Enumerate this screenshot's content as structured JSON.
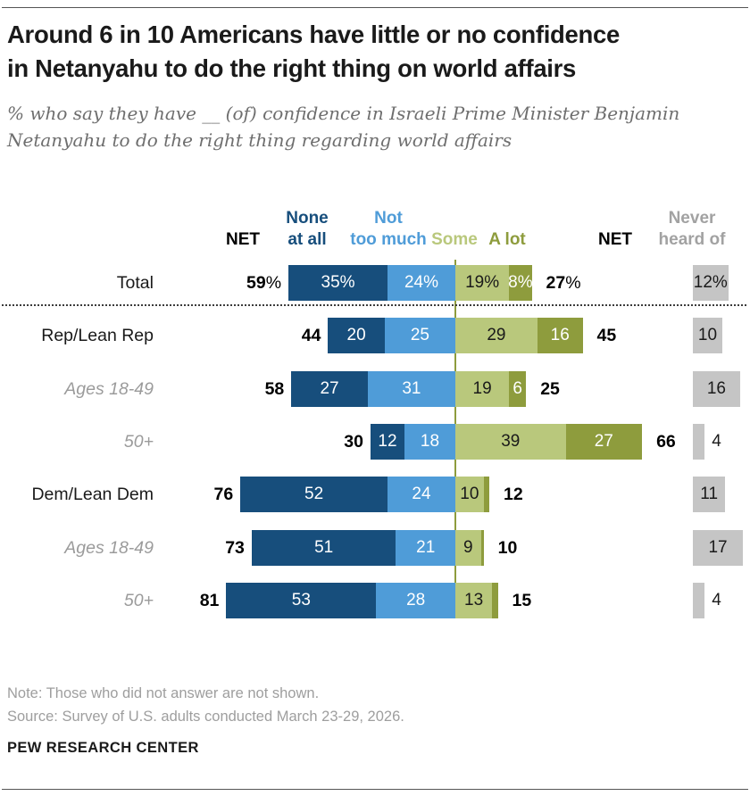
{
  "page": {
    "title": [
      "Around 6 in 10 Americans have little or no confidence",
      "in Netanyahu to do the right thing on world affairs"
    ],
    "subtitle": [
      "% who say they have __ (of) confidence in Israeli Prime Minister Benjamin",
      "Netanyahu to do the right thing regarding world affairs"
    ],
    "note": "Note: Those who did not answer are not shown.",
    "source": "Source: Survey of U.S. adults conducted March 23-29, 2026.",
    "brand": "PEW RESEARCH CENTER"
  },
  "colors": {
    "none_at_all": "#174e7c",
    "not_too_much": "#4f9cd8",
    "some": "#b9c87c",
    "a_lot": "#8e9c3d",
    "never_heard_of": "#c5c5c5",
    "axis_line": "#8e9c3d",
    "some_label_text": "#1a1a1a",
    "segment_label_text": "#ffffff",
    "net_text": "#000000",
    "muted_label": "#9b9b9b",
    "never_header_text": "#a2a2a2"
  },
  "chart_data": {
    "type": "bar",
    "variant": "horizontal-diverging-stacked",
    "title": "Around 6 in 10 Americans have little or no confidence in Netanyahu to do the right thing on world affairs",
    "subtitle": "% who say they have __ (of) confidence in Israeli Prime Minister Benjamin Netanyahu to do the right thing regarding world affairs",
    "column_headers": [
      {
        "id": "net-left",
        "lines": [
          "NET"
        ],
        "color": "#000000"
      },
      {
        "id": "none-at-all",
        "lines": [
          "None",
          "at all"
        ],
        "color": "#174e7c"
      },
      {
        "id": "not-too-much",
        "lines": [
          "Not",
          "too much"
        ],
        "color": "#4f9cd8"
      },
      {
        "id": "some",
        "lines": [
          "Some"
        ],
        "color": "#b9c87c"
      },
      {
        "id": "a-lot",
        "lines": [
          "A lot"
        ],
        "color": "#8e9c3d"
      },
      {
        "id": "net-right",
        "lines": [
          "NET"
        ],
        "color": "#000000"
      },
      {
        "id": "never-heard-of",
        "lines": [
          "Never",
          "heard of"
        ],
        "color": "#a2a2a2"
      }
    ],
    "categories": [
      "Total",
      "Rep/Lean Rep",
      "Ages 18-49",
      "50+",
      "Dem/Lean Dem",
      "Ages 18-49",
      "50+"
    ],
    "rows": [
      {
        "label": "Total",
        "muted": false,
        "net_left": "59%",
        "net_right": "27%",
        "segments": {
          "none_at_all": 35,
          "not_too_much": 24,
          "some": 19,
          "a_lot": 8
        },
        "segment_labels": {
          "none_at_all": "35%",
          "not_too_much": "24%",
          "some": "19%",
          "a_lot": "8%"
        },
        "never_heard_of": 12,
        "never_label": "12%"
      },
      {
        "label": "Rep/Lean Rep",
        "muted": false,
        "net_left": "44",
        "net_right": "45",
        "segments": {
          "none_at_all": 20,
          "not_too_much": 25,
          "some": 29,
          "a_lot": 16
        },
        "segment_labels": {
          "none_at_all": "20",
          "not_too_much": "25",
          "some": "29",
          "a_lot": "16"
        },
        "never_heard_of": 10,
        "never_label": "10"
      },
      {
        "label": "Ages 18-49",
        "muted": true,
        "net_left": "58",
        "net_right": "25",
        "segments": {
          "none_at_all": 27,
          "not_too_much": 31,
          "some": 19,
          "a_lot": 6
        },
        "segment_labels": {
          "none_at_all": "27",
          "not_too_much": "31",
          "some": "19",
          "a_lot": "6"
        },
        "never_heard_of": 16,
        "never_label": "16"
      },
      {
        "label": "50+",
        "muted": true,
        "net_left": "30",
        "net_right": "66",
        "segments": {
          "none_at_all": 12,
          "not_too_much": 18,
          "some": 39,
          "a_lot": 27
        },
        "segment_labels": {
          "none_at_all": "12",
          "not_too_much": "18",
          "some": "39",
          "a_lot": "27"
        },
        "never_heard_of": 4,
        "never_label": "4"
      },
      {
        "label": "Dem/Lean Dem",
        "muted": false,
        "net_left": "76",
        "net_right": "12",
        "segments": {
          "none_at_all": 52,
          "not_too_much": 24,
          "some": 10,
          "a_lot": 2
        },
        "segment_labels": {
          "none_at_all": "52",
          "not_too_much": "24",
          "some": "10",
          "a_lot": null
        },
        "never_heard_of": 11,
        "never_label": "11"
      },
      {
        "label": "Ages 18-49",
        "muted": true,
        "net_left": "73",
        "net_right": "10",
        "segments": {
          "none_at_all": 51,
          "not_too_much": 21,
          "some": 9,
          "a_lot": 1
        },
        "segment_labels": {
          "none_at_all": "51",
          "not_too_much": "21",
          "some": "9",
          "a_lot": null
        },
        "never_heard_of": 17,
        "never_label": "17"
      },
      {
        "label": "50+",
        "muted": true,
        "net_left": "81",
        "net_right": "15",
        "segments": {
          "none_at_all": 53,
          "not_too_much": 28,
          "some": 13,
          "a_lot": 2
        },
        "segment_labels": {
          "none_at_all": "53",
          "not_too_much": "28",
          "some": "13",
          "a_lot": null
        },
        "never_heard_of": 4,
        "never_label": "4"
      }
    ]
  }
}
